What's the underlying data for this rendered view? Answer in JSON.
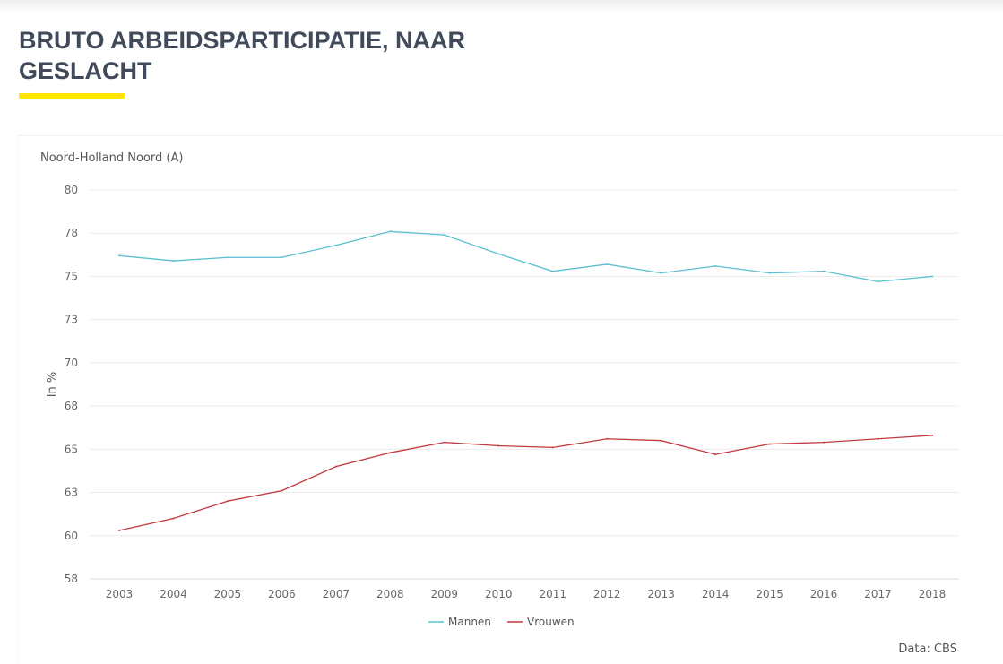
{
  "title": "BRUTO ARBEIDSPARTICIPATIE, NAAR GESLACHT",
  "source": "Data: CBS",
  "chart_data": {
    "type": "line",
    "subtitle": "Noord-Holland Noord (A)",
    "xlabel": "",
    "ylabel": "In %",
    "ylim": [
      57.5,
      80
    ],
    "yticks": [
      80,
      77.5,
      75,
      72.5,
      70,
      67.5,
      65,
      62.5,
      60,
      57.5
    ],
    "ytick_labels": [
      "80",
      "78",
      "75",
      "73",
      "70",
      "68",
      "65",
      "63",
      "60",
      "58"
    ],
    "grid": true,
    "legend": "bottom-center",
    "x": [
      "2003",
      "2004",
      "2005",
      "2006",
      "2007",
      "2008",
      "2009",
      "2010",
      "2011",
      "2012",
      "2013",
      "2014",
      "2015",
      "2016",
      "2017",
      "2018"
    ],
    "series": [
      {
        "name": "Mannen",
        "color": "#5bbfd0",
        "values": [
          76.2,
          75.9,
          76.1,
          76.1,
          76.8,
          77.6,
          77.4,
          76.3,
          75.3,
          75.7,
          75.2,
          75.6,
          75.2,
          75.3,
          74.7,
          75.0
        ]
      },
      {
        "name": "Vrouwen",
        "color": "#c0393f",
        "values": [
          60.3,
          61.0,
          62.0,
          62.6,
          64.0,
          64.8,
          65.4,
          65.2,
          65.1,
          65.6,
          65.5,
          64.7,
          65.3,
          65.4,
          65.6,
          65.8
        ]
      }
    ]
  },
  "colors": {
    "accent": "#ffe600",
    "title": "#414a5a"
  }
}
